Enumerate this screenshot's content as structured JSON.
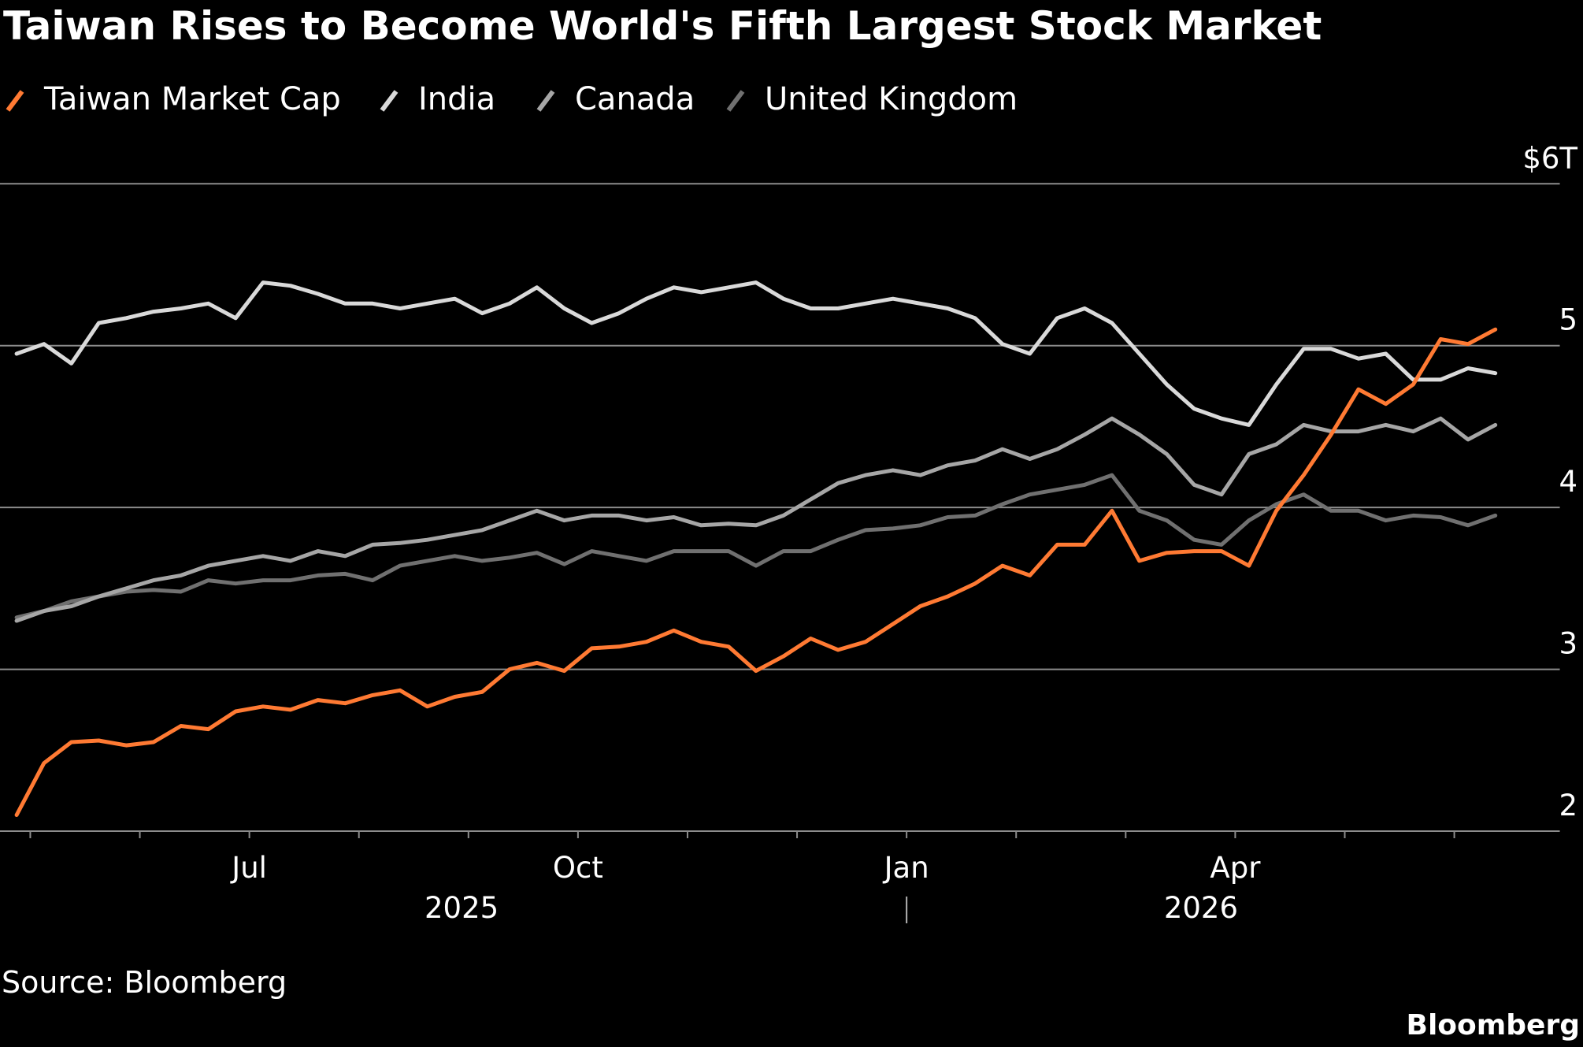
{
  "chart_data": {
    "type": "line",
    "title": "Taiwan Rises to Become World's Fifth Largest Stock Market",
    "source": "Source: Bloomberg",
    "logo": "Bloomberg",
    "x": [
      "2025-04",
      "2025-05",
      "2025-05",
      "2025-05",
      "2025-05",
      "2025-06",
      "2025-06",
      "2025-06",
      "2025-06",
      "2025-07",
      "2025-07",
      "2025-07",
      "2025-07",
      "2025-08",
      "2025-08",
      "2025-08",
      "2025-08",
      "2025-09",
      "2025-09",
      "2025-09",
      "2025-09",
      "2025-10",
      "2025-10",
      "2025-10",
      "2025-10",
      "2025-11",
      "2025-11",
      "2025-11",
      "2025-11",
      "2025-12",
      "2025-12",
      "2025-12",
      "2025-12",
      "2026-01",
      "2026-01",
      "2026-01",
      "2026-01",
      "2026-02",
      "2026-02",
      "2026-02",
      "2026-02",
      "2026-03",
      "2026-03",
      "2026-03",
      "2026-03",
      "2026-04",
      "2026-04",
      "2026-04",
      "2026-04",
      "2026-05",
      "2026-05",
      "2026-05",
      "2026-05",
      "2026-06",
      "2026-06"
    ],
    "series": [
      {
        "name": "Taiwan Market Cap",
        "color": "#ff7a33",
        "values": [
          2.1,
          2.42,
          2.55,
          2.56,
          2.53,
          2.55,
          2.65,
          2.63,
          2.74,
          2.77,
          2.75,
          2.81,
          2.79,
          2.84,
          2.87,
          2.77,
          2.83,
          2.86,
          3.0,
          3.04,
          2.99,
          3.13,
          3.14,
          3.17,
          3.24,
          3.17,
          3.14,
          2.99,
          3.08,
          3.19,
          3.12,
          3.17,
          3.28,
          3.39,
          3.45,
          3.53,
          3.64,
          3.58,
          3.77,
          3.77,
          3.98,
          3.67,
          3.72,
          3.73,
          3.73,
          3.64,
          3.98,
          4.2,
          4.45,
          4.73,
          4.64,
          4.76,
          5.04,
          5.01,
          5.1
        ]
      },
      {
        "name": "India",
        "color": "#d9d9d9",
        "values": [
          4.95,
          5.01,
          4.89,
          5.14,
          5.17,
          5.21,
          5.23,
          5.26,
          5.17,
          5.39,
          5.37,
          5.32,
          5.26,
          5.26,
          5.23,
          5.26,
          5.29,
          5.2,
          5.26,
          5.36,
          5.23,
          5.14,
          5.2,
          5.29,
          5.36,
          5.33,
          5.36,
          5.39,
          5.29,
          5.23,
          5.23,
          5.26,
          5.29,
          5.26,
          5.23,
          5.17,
          5.01,
          4.95,
          5.17,
          5.23,
          5.14,
          4.95,
          4.76,
          4.61,
          4.55,
          4.51,
          4.76,
          4.98,
          4.98,
          4.92,
          4.95,
          4.79,
          4.79,
          4.86,
          4.83
        ]
      },
      {
        "name": "Canada",
        "color": "#a6a6a6",
        "values": [
          3.3,
          3.36,
          3.39,
          3.45,
          3.5,
          3.55,
          3.58,
          3.64,
          3.67,
          3.7,
          3.67,
          3.73,
          3.7,
          3.77,
          3.78,
          3.8,
          3.83,
          3.86,
          3.92,
          3.98,
          3.92,
          3.95,
          3.95,
          3.92,
          3.94,
          3.89,
          3.9,
          3.89,
          3.95,
          4.05,
          4.15,
          4.2,
          4.23,
          4.2,
          4.26,
          4.29,
          4.36,
          4.3,
          4.36,
          4.45,
          4.55,
          4.45,
          4.33,
          4.14,
          4.08,
          4.33,
          4.39,
          4.51,
          4.47,
          4.47,
          4.51,
          4.47,
          4.55,
          4.42,
          4.51
        ]
      },
      {
        "name": "United Kingdom",
        "color": "#707070",
        "values": [
          3.32,
          3.36,
          3.42,
          3.45,
          3.48,
          3.49,
          3.48,
          3.55,
          3.53,
          3.55,
          3.55,
          3.58,
          3.59,
          3.55,
          3.64,
          3.67,
          3.7,
          3.67,
          3.69,
          3.72,
          3.65,
          3.73,
          3.7,
          3.67,
          3.73,
          3.73,
          3.73,
          3.64,
          3.73,
          3.73,
          3.8,
          3.86,
          3.87,
          3.89,
          3.94,
          3.95,
          4.02,
          4.08,
          4.11,
          4.14,
          4.2,
          3.98,
          3.92,
          3.8,
          3.77,
          3.92,
          4.02,
          4.08,
          3.98,
          3.98,
          3.92,
          3.95,
          3.94,
          3.89,
          3.95
        ]
      }
    ],
    "ylim": [
      2,
      6
    ],
    "yticks": [
      2,
      3,
      4,
      5,
      {
        "value": 6,
        "label": "$6T"
      }
    ],
    "xticks": [
      {
        "value": "2025-07",
        "label": "Jul"
      },
      {
        "value": "2025-10",
        "label": "Oct"
      },
      {
        "value": "2026-01",
        "label": "Jan"
      },
      {
        "value": "2026-04",
        "label": "Apr"
      }
    ],
    "xminor_ticks": [
      "2025-05",
      "2025-06",
      "2025-08",
      "2025-09",
      "2025-11",
      "2025-12",
      "2026-02",
      "2026-03",
      "2026-05",
      "2026-06"
    ],
    "year_labels": [
      "2025",
      "2026"
    ],
    "grid": true
  }
}
